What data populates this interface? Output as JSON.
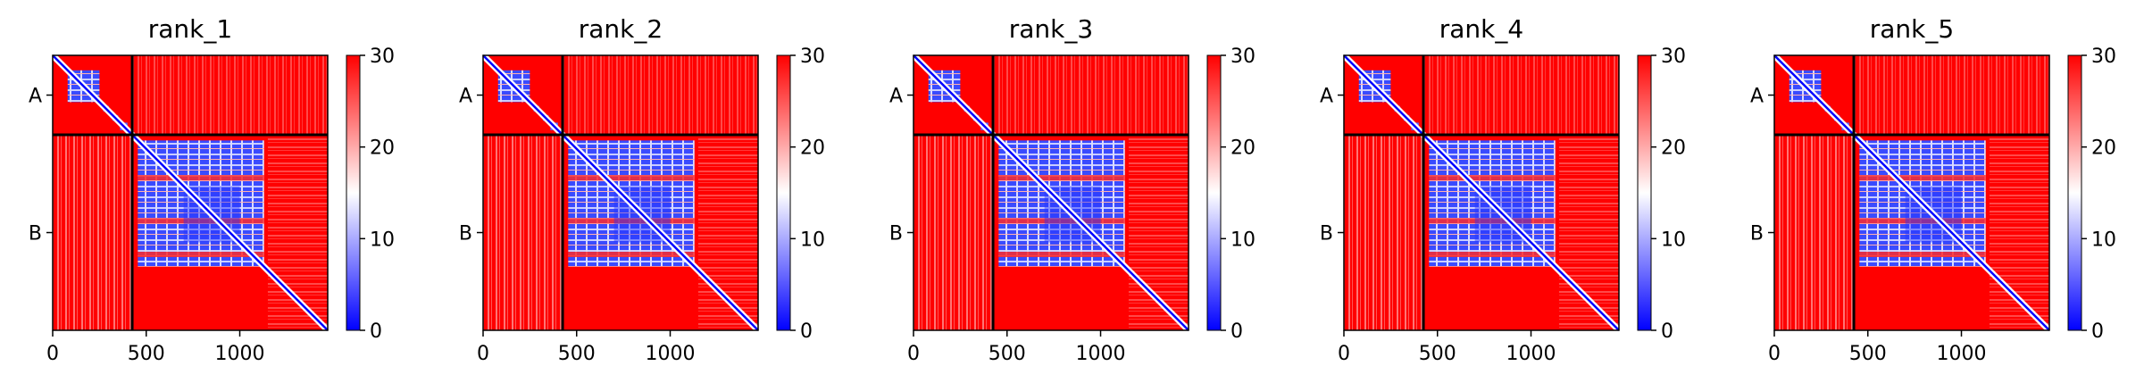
{
  "chart_data": {
    "type": "heatmap",
    "colorbar": {
      "min": 0,
      "max": 30,
      "ticks": [
        0,
        10,
        20,
        30
      ],
      "colormap": [
        "#0000ff",
        "#ffffff",
        "#ff0000"
      ]
    },
    "x_range": [
      0,
      1470
    ],
    "x_ticks": [
      0,
      500,
      1000
    ],
    "y_labels": [
      "A",
      "B"
    ],
    "chain_boundary": 425,
    "chain_A_range": [
      0,
      425
    ],
    "chain_B_range": [
      425,
      1470
    ],
    "panels": [
      {
        "title": "rank_1"
      },
      {
        "title": "rank_2"
      },
      {
        "title": "rank_3"
      },
      {
        "title": "rank_4"
      },
      {
        "title": "rank_5"
      }
    ]
  }
}
